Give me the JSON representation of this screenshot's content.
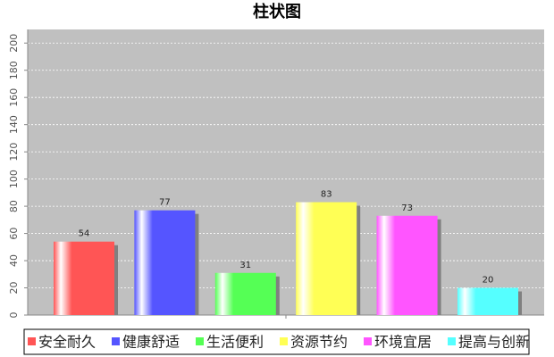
{
  "chart_data": {
    "type": "bar",
    "title": "柱状图",
    "categories": [
      null
    ],
    "series": [
      {
        "name": "安全耐久",
        "color": "#ff5555",
        "values": [
          54
        ]
      },
      {
        "name": "健康舒适",
        "color": "#5555ff",
        "values": [
          77
        ]
      },
      {
        "name": "生活便利",
        "color": "#55ff55",
        "values": [
          31
        ]
      },
      {
        "name": "资源节约",
        "color": "#ffff55",
        "values": [
          83
        ]
      },
      {
        "name": "环境宜居",
        "color": "#ff55ff",
        "values": [
          73
        ]
      },
      {
        "name": "提高与创新",
        "color": "#55ffff",
        "values": [
          20
        ]
      }
    ],
    "ylim": [
      0,
      210
    ],
    "yticks": [
      0,
      20,
      40,
      60,
      80,
      100,
      120,
      140,
      160,
      180,
      200
    ],
    "grid": true
  }
}
